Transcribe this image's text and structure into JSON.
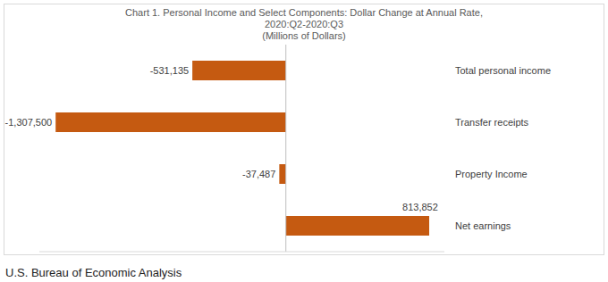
{
  "chart_data": {
    "type": "bar",
    "orientation": "horizontal",
    "title": "Chart 1. Personal Income and Select Components: Dollar Change at Annual Rate,",
    "subtitle": [
      "2020:Q2-2020:Q3",
      "(Millions of Dollars)"
    ],
    "annotations": [
      "U.S. Bureau of Economic Analysis"
    ],
    "categories": [
      "Total personal income",
      "Transfer receipts",
      "Property Income",
      "Net earnings"
    ],
    "values": [
      -531135,
      -1307500,
      -37487,
      813852
    ],
    "value_labels": [
      "-531,135",
      "-1,307,500",
      "-37,487",
      "813,852"
    ],
    "data_labels": true,
    "color": "#C55A11",
    "xlim": [
      -1400000,
      900000
    ],
    "xticks": [],
    "grid": false,
    "tick_labels": "y"
  }
}
